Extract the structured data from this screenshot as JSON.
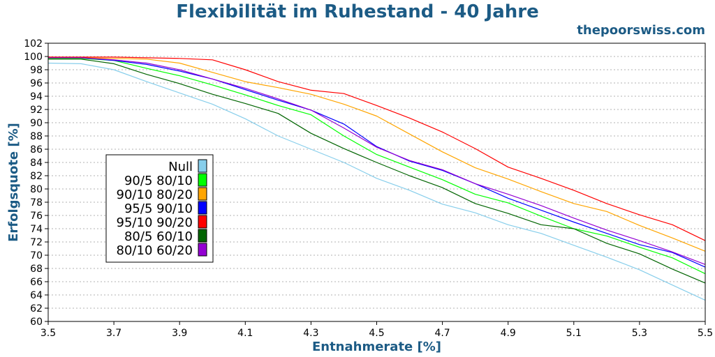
{
  "header": {
    "title": "Flexibilität im Ruhestand - 40 Jahre",
    "site": "thepoorswiss.com"
  },
  "chart_data": {
    "type": "line",
    "title": "Flexibilität im Ruhestand - 40 Jahre",
    "xlabel": "Entnahmerate [%]",
    "ylabel": "Erfolgsquote [%]",
    "xlim": [
      3.5,
      5.5
    ],
    "ylim": [
      60,
      102
    ],
    "xticks": [
      "3.5",
      "3.7",
      "3.9",
      "4.1",
      "4.3",
      "4.5",
      "4.7",
      "4.9",
      "5.1",
      "5.3",
      "5.5"
    ],
    "yticks": [
      "60",
      "62",
      "64",
      "66",
      "68",
      "70",
      "72",
      "74",
      "76",
      "78",
      "80",
      "82",
      "84",
      "86",
      "88",
      "90",
      "92",
      "94",
      "96",
      "98",
      "100",
      "102"
    ],
    "grid": true,
    "legend_position": "left-center",
    "x": [
      3.5,
      3.6,
      3.7,
      3.8,
      3.9,
      4.0,
      4.1,
      4.2,
      4.3,
      4.4,
      4.5,
      4.6,
      4.7,
      4.8,
      4.9,
      5.0,
      5.1,
      5.2,
      5.3,
      5.4,
      5.5
    ],
    "series": [
      {
        "name": "Null",
        "color": "#87ceeb",
        "values": [
          99.0,
          98.9,
          98.0,
          96.2,
          94.5,
          92.8,
          90.6,
          88.0,
          86.0,
          84.0,
          81.6,
          79.8,
          77.7,
          76.4,
          74.6,
          73.3,
          71.5,
          69.7,
          67.8,
          65.5,
          63.2
        ]
      },
      {
        "name": "90/5 80/10",
        "color": "#00ff00",
        "values": [
          99.7,
          99.7,
          99.4,
          98.2,
          97.1,
          95.7,
          94.2,
          92.6,
          91.2,
          88.0,
          85.2,
          83.3,
          81.4,
          79.2,
          77.9,
          75.9,
          74.0,
          72.9,
          71.2,
          69.6,
          67.2
        ]
      },
      {
        "name": "90/10 80/20",
        "color": "#ffa500",
        "values": [
          99.9,
          99.8,
          99.7,
          99.6,
          99.0,
          97.6,
          96.2,
          95.3,
          94.3,
          92.8,
          91.0,
          88.3,
          85.6,
          83.2,
          81.5,
          79.6,
          77.8,
          76.6,
          74.5,
          72.6,
          70.6
        ]
      },
      {
        "name": "95/5 90/10",
        "color": "#0000ff",
        "values": [
          99.8,
          99.8,
          99.4,
          98.8,
          97.8,
          96.6,
          95.0,
          93.4,
          91.9,
          89.8,
          86.4,
          84.2,
          82.8,
          80.8,
          78.6,
          76.8,
          75.0,
          73.3,
          71.6,
          70.4,
          68.2
        ]
      },
      {
        "name": "95/10 90/20",
        "color": "#ff0000",
        "values": [
          99.9,
          99.9,
          99.9,
          99.8,
          99.7,
          99.5,
          98.0,
          96.2,
          94.9,
          94.4,
          92.6,
          90.7,
          88.6,
          86.1,
          83.3,
          81.6,
          79.8,
          77.8,
          76.1,
          74.6,
          72.2
        ]
      },
      {
        "name": "80/5 60/10",
        "color": "#006400",
        "values": [
          99.6,
          99.6,
          98.9,
          97.3,
          95.9,
          94.3,
          92.9,
          91.4,
          88.4,
          86.1,
          84.0,
          82.0,
          80.2,
          77.8,
          76.3,
          74.6,
          74.0,
          71.8,
          70.2,
          67.9,
          65.8
        ]
      },
      {
        "name": "80/10 60/20",
        "color": "#9400d3",
        "values": [
          99.8,
          99.8,
          99.5,
          99.0,
          98.0,
          96.6,
          95.2,
          93.6,
          91.9,
          89.2,
          86.3,
          84.3,
          82.9,
          80.8,
          79.2,
          77.5,
          75.6,
          73.8,
          72.2,
          70.5,
          68.6
        ]
      }
    ]
  }
}
